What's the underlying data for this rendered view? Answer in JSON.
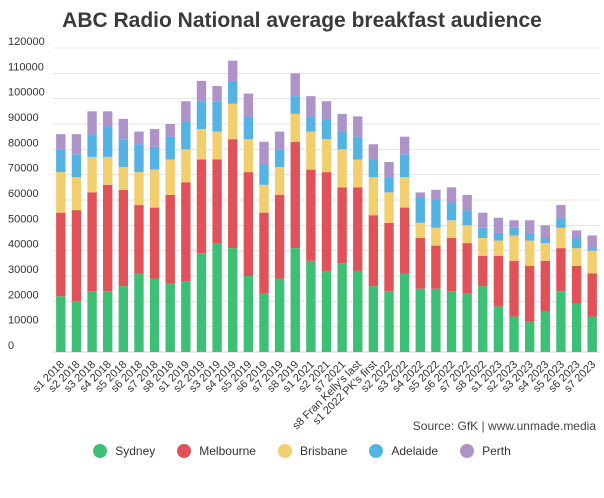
{
  "chart_data": {
    "type": "bar",
    "stacked": true,
    "title": "ABC Radio National average breakfast audience",
    "source": "Source: GfK | www.unmade.media",
    "ylim": [
      0,
      120000
    ],
    "yticks": [
      "120000",
      "110000",
      "100000",
      "90000",
      "80000",
      "70000",
      "60000",
      "50000",
      "40000",
      "30000",
      "20000",
      "10000",
      "0"
    ],
    "grid": true,
    "legend_position": "bottom",
    "categories": [
      "s1 2018",
      "s2 2018",
      "s3 2018",
      "s4 2018",
      "s5 2018",
      "s6 2018",
      "s7 2018",
      "s8 2018",
      "s1 2019",
      "s2 2019",
      "s3 2019",
      "s4 2019",
      "s5 2019",
      "s6 2019",
      "s7 2019",
      "s8 2019",
      "s1 2021",
      "s2 2021",
      "s7 2021",
      "s8 Fran Kelly's last",
      "s1 2022 PK's first",
      "s2 2022",
      "s3 2022",
      "s4 2022",
      "s5 2022",
      "s6 2022",
      "s7 2022",
      "s8 2022",
      "s1 2023",
      "s2 2023",
      "s3 2023",
      "s4 2023",
      "s5 2023",
      "s6 2023",
      "s7 2023"
    ],
    "series": [
      {
        "name": "Sydney",
        "color": "#3dbf76",
        "values": [
          22000,
          20000,
          24000,
          24000,
          26000,
          31000,
          29000,
          27000,
          28000,
          39000,
          43000,
          41000,
          30000,
          23000,
          29000,
          41000,
          36000,
          32000,
          35000,
          32000,
          26000,
          24000,
          31000,
          25000,
          25000,
          24000,
          23000,
          26000,
          18000,
          14000,
          12000,
          16000,
          24000,
          19000,
          14000
        ]
      },
      {
        "name": "Melbourne",
        "color": "#e0525a",
        "values": [
          33000,
          36000,
          39000,
          42000,
          38000,
          27000,
          28000,
          35000,
          39000,
          37000,
          33000,
          43000,
          41000,
          32000,
          33000,
          42000,
          36000,
          39000,
          30000,
          33000,
          28000,
          27000,
          26000,
          20000,
          17000,
          21000,
          20000,
          12000,
          20000,
          22000,
          22000,
          20000,
          17000,
          15000,
          17000
        ]
      },
      {
        "name": "Brisbane",
        "color": "#f2cf6e",
        "values": [
          16000,
          13000,
          14000,
          11000,
          9000,
          13000,
          15000,
          14000,
          13000,
          12000,
          11000,
          14000,
          13000,
          11000,
          11000,
          11000,
          15000,
          13000,
          15000,
          11000,
          15000,
          12000,
          12000,
          6000,
          7000,
          7000,
          7000,
          7000,
          6000,
          10000,
          10000,
          7000,
          8000,
          7000,
          9000
        ]
      },
      {
        "name": "Adelaide",
        "color": "#55b3e4",
        "values": [
          9000,
          9000,
          9000,
          12000,
          11000,
          11000,
          9000,
          9000,
          11000,
          11000,
          12000,
          9000,
          9000,
          8000,
          7000,
          7000,
          6000,
          8000,
          7000,
          9000,
          7000,
          6000,
          9000,
          10000,
          11000,
          7000,
          6000,
          4000,
          3000,
          3000,
          3000,
          2000,
          4000,
          4000,
          1000
        ]
      },
      {
        "name": "Perth",
        "color": "#ae93c9",
        "values": [
          6000,
          8000,
          9000,
          6000,
          8000,
          5000,
          7000,
          5000,
          8000,
          8000,
          6000,
          8000,
          9000,
          9000,
          7000,
          9000,
          8000,
          7000,
          7000,
          8000,
          6000,
          6000,
          7000,
          2000,
          4000,
          6000,
          6000,
          6000,
          6000,
          3000,
          5000,
          5000,
          5000,
          3000,
          5000
        ]
      }
    ]
  }
}
